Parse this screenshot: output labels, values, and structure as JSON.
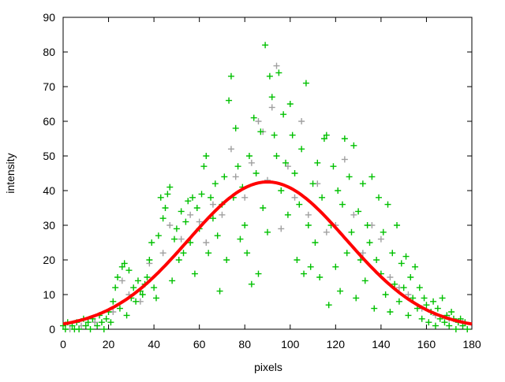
{
  "chart_data": {
    "type": "scatter",
    "title": "",
    "xlabel": "pixels",
    "ylabel": "intensity",
    "xlim": [
      0,
      180
    ],
    "ylim": [
      0,
      90
    ],
    "xticks": [
      0,
      20,
      40,
      60,
      80,
      100,
      120,
      140,
      160,
      180
    ],
    "yticks": [
      0,
      10,
      20,
      30,
      40,
      50,
      60,
      70,
      80,
      90
    ],
    "grid": false,
    "legend": "none",
    "colors": {
      "series_gray": "#a0a0a0",
      "series_green": "#00c000",
      "fit": "#ff0000"
    },
    "series": [
      {
        "marker": "+",
        "color": "#a0a0a0",
        "points": [
          [
            3,
            0
          ],
          [
            8,
            1
          ],
          [
            14,
            2
          ],
          [
            22,
            5
          ],
          [
            26,
            14
          ],
          [
            29,
            10
          ],
          [
            34,
            8
          ],
          [
            38,
            19
          ],
          [
            44,
            22
          ],
          [
            47,
            30
          ],
          [
            52,
            26
          ],
          [
            56,
            33
          ],
          [
            60,
            31
          ],
          [
            63,
            25
          ],
          [
            66,
            36
          ],
          [
            70,
            33
          ],
          [
            74,
            52
          ],
          [
            76,
            44
          ],
          [
            80,
            38
          ],
          [
            83,
            48
          ],
          [
            86,
            60
          ],
          [
            88,
            57
          ],
          [
            90,
            43
          ],
          [
            92,
            64
          ],
          [
            94,
            76
          ],
          [
            96,
            29
          ],
          [
            99,
            47
          ],
          [
            102,
            38
          ],
          [
            105,
            60
          ],
          [
            108,
            33
          ],
          [
            112,
            42
          ],
          [
            116,
            28
          ],
          [
            120,
            30
          ],
          [
            124,
            49
          ],
          [
            128,
            33
          ],
          [
            132,
            22
          ],
          [
            136,
            30
          ],
          [
            140,
            26
          ],
          [
            144,
            15
          ],
          [
            148,
            12
          ],
          [
            152,
            10
          ],
          [
            158,
            6
          ],
          [
            164,
            4
          ],
          [
            170,
            3
          ],
          [
            176,
            2
          ]
        ]
      },
      {
        "marker": "+",
        "color": "#00c000",
        "points": [
          [
            0,
            1
          ],
          [
            1,
            0
          ],
          [
            2,
            2
          ],
          [
            4,
            1
          ],
          [
            5,
            0
          ],
          [
            6,
            2
          ],
          [
            7,
            0
          ],
          [
            9,
            3
          ],
          [
            10,
            1
          ],
          [
            11,
            2
          ],
          [
            12,
            0
          ],
          [
            13,
            3
          ],
          [
            15,
            1
          ],
          [
            16,
            4
          ],
          [
            17,
            2
          ],
          [
            18,
            0
          ],
          [
            19,
            3
          ],
          [
            20,
            5
          ],
          [
            21,
            2
          ],
          [
            22,
            8
          ],
          [
            23,
            12
          ],
          [
            24,
            15
          ],
          [
            25,
            6
          ],
          [
            26,
            18
          ],
          [
            27,
            19
          ],
          [
            28,
            4
          ],
          [
            29,
            17
          ],
          [
            30,
            9
          ],
          [
            31,
            12
          ],
          [
            32,
            8
          ],
          [
            33,
            14
          ],
          [
            34,
            11
          ],
          [
            35,
            10
          ],
          [
            36,
            13
          ],
          [
            37,
            15
          ],
          [
            38,
            20
          ],
          [
            39,
            25
          ],
          [
            40,
            12
          ],
          [
            41,
            9
          ],
          [
            42,
            27
          ],
          [
            43,
            38
          ],
          [
            44,
            32
          ],
          [
            45,
            35
          ],
          [
            46,
            39
          ],
          [
            47,
            41
          ],
          [
            48,
            14
          ],
          [
            49,
            26
          ],
          [
            50,
            29
          ],
          [
            51,
            20
          ],
          [
            52,
            34
          ],
          [
            53,
            22
          ],
          [
            54,
            31
          ],
          [
            55,
            37
          ],
          [
            56,
            25
          ],
          [
            57,
            38
          ],
          [
            58,
            16
          ],
          [
            59,
            35
          ],
          [
            60,
            29
          ],
          [
            61,
            39
          ],
          [
            62,
            47
          ],
          [
            63,
            50
          ],
          [
            64,
            22
          ],
          [
            65,
            38
          ],
          [
            66,
            32
          ],
          [
            67,
            42
          ],
          [
            68,
            27
          ],
          [
            69,
            11
          ],
          [
            70,
            36
          ],
          [
            71,
            44
          ],
          [
            72,
            20
          ],
          [
            73,
            66
          ],
          [
            74,
            73
          ],
          [
            75,
            38
          ],
          [
            76,
            58
          ],
          [
            77,
            47
          ],
          [
            78,
            26
          ],
          [
            79,
            41
          ],
          [
            80,
            30
          ],
          [
            81,
            22
          ],
          [
            82,
            50
          ],
          [
            83,
            13
          ],
          [
            84,
            61
          ],
          [
            85,
            45
          ],
          [
            86,
            16
          ],
          [
            87,
            57
          ],
          [
            88,
            35
          ],
          [
            89,
            82
          ],
          [
            90,
            28
          ],
          [
            91,
            73
          ],
          [
            92,
            67
          ],
          [
            93,
            56
          ],
          [
            94,
            50
          ],
          [
            95,
            74
          ],
          [
            96,
            40
          ],
          [
            97,
            62
          ],
          [
            98,
            48
          ],
          [
            99,
            33
          ],
          [
            100,
            65
          ],
          [
            101,
            56
          ],
          [
            102,
            45
          ],
          [
            103,
            20
          ],
          [
            104,
            36
          ],
          [
            105,
            52
          ],
          [
            106,
            16
          ],
          [
            107,
            71
          ],
          [
            108,
            30
          ],
          [
            109,
            18
          ],
          [
            110,
            42
          ],
          [
            111,
            25
          ],
          [
            112,
            48
          ],
          [
            113,
            15
          ],
          [
            114,
            38
          ],
          [
            115,
            55
          ],
          [
            116,
            56
          ],
          [
            117,
            7
          ],
          [
            118,
            30
          ],
          [
            119,
            47
          ],
          [
            120,
            18
          ],
          [
            121,
            40
          ],
          [
            122,
            11
          ],
          [
            123,
            36
          ],
          [
            124,
            55
          ],
          [
            125,
            22
          ],
          [
            126,
            44
          ],
          [
            127,
            28
          ],
          [
            128,
            53
          ],
          [
            129,
            9
          ],
          [
            130,
            34
          ],
          [
            131,
            20
          ],
          [
            132,
            42
          ],
          [
            133,
            14
          ],
          [
            134,
            30
          ],
          [
            135,
            25
          ],
          [
            136,
            44
          ],
          [
            137,
            6
          ],
          [
            138,
            20
          ],
          [
            139,
            38
          ],
          [
            140,
            16
          ],
          [
            141,
            28
          ],
          [
            142,
            10
          ],
          [
            143,
            36
          ],
          [
            144,
            5
          ],
          [
            145,
            22
          ],
          [
            146,
            13
          ],
          [
            147,
            30
          ],
          [
            148,
            8
          ],
          [
            149,
            19
          ],
          [
            150,
            12
          ],
          [
            151,
            21
          ],
          [
            152,
            4
          ],
          [
            153,
            15
          ],
          [
            154,
            9
          ],
          [
            155,
            18
          ],
          [
            156,
            6
          ],
          [
            157,
            12
          ],
          [
            158,
            3
          ],
          [
            159,
            9
          ],
          [
            160,
            7
          ],
          [
            161,
            2
          ],
          [
            162,
            5
          ],
          [
            163,
            8
          ],
          [
            164,
            1
          ],
          [
            165,
            6
          ],
          [
            166,
            3
          ],
          [
            167,
            9
          ],
          [
            168,
            2
          ],
          [
            169,
            4
          ],
          [
            170,
            1
          ],
          [
            171,
            5
          ],
          [
            172,
            3
          ],
          [
            173,
            0
          ],
          [
            174,
            2
          ],
          [
            175,
            3
          ],
          [
            176,
            1
          ],
          [
            177,
            2
          ],
          [
            178,
            0
          ]
        ]
      }
    ],
    "fit": {
      "type": "line",
      "color": "#ff0000",
      "model": "gaussian",
      "amplitude": 42.5,
      "center": 90,
      "sigma": 34.8
    }
  }
}
